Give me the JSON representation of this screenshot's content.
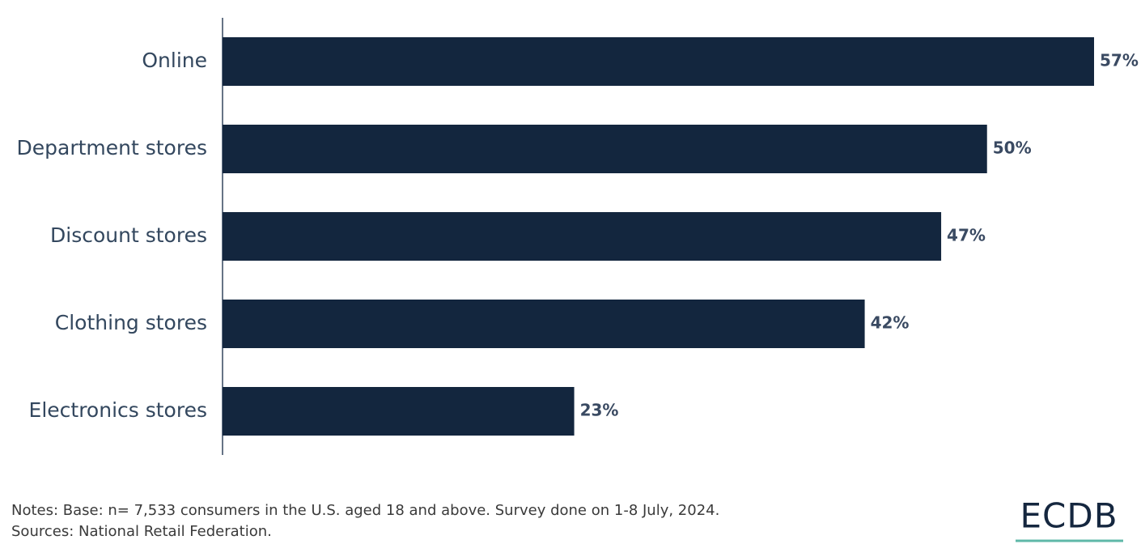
{
  "chart_data": {
    "type": "bar",
    "orientation": "horizontal",
    "categories": [
      "Online",
      "Department stores",
      "Discount stores",
      "Clothing stores",
      "Electronics stores"
    ],
    "values": [
      57,
      50,
      47,
      42,
      23
    ],
    "value_labels": [
      "57%",
      "50%",
      "47%",
      "42%",
      "23%"
    ],
    "color": "#13263e"
  },
  "notes": "Notes: Base: n= 7,533 consumers in the U.S. aged 18 and above. Survey done on 1-8 July, 2024.",
  "sources": "Sources: National Retail Federation.",
  "logo": "ECDB"
}
